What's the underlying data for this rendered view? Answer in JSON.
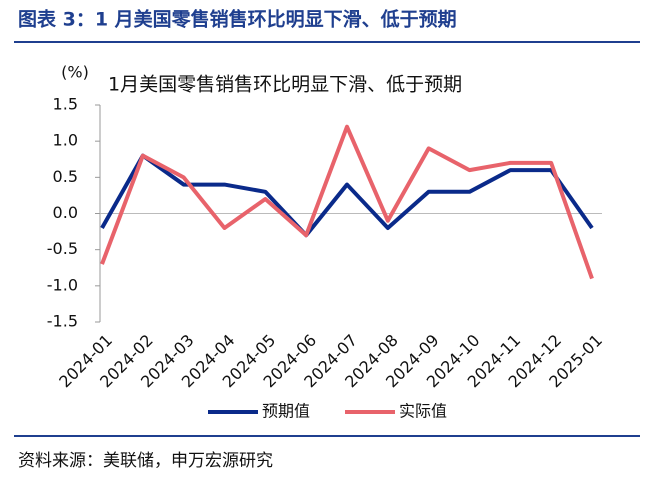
{
  "header": {
    "title": "图表 3：1 月美国零售销售环比明显下滑、低于预期"
  },
  "chart_data": {
    "type": "line",
    "title": "1月美国零售销售环比明显下滑、低于预期",
    "y_label": "(%)",
    "categories": [
      "2024-01",
      "2024-02",
      "2024-03",
      "2024-04",
      "2024-05",
      "2024-06",
      "2024-07",
      "2024-08",
      "2024-09",
      "2024-10",
      "2024-11",
      "2024-12",
      "2025-01"
    ],
    "series": [
      {
        "name": "预期值",
        "color": "#0a2a8a",
        "values": [
          -0.2,
          0.8,
          0.4,
          0.4,
          0.3,
          -0.3,
          0.4,
          -0.2,
          0.3,
          0.3,
          0.6,
          0.6,
          -0.2
        ]
      },
      {
        "name": "实际值",
        "color": "#e8636b",
        "values": [
          -0.7,
          0.8,
          0.5,
          -0.2,
          0.2,
          -0.3,
          1.2,
          -0.1,
          0.9,
          0.6,
          0.7,
          0.7,
          -0.9
        ]
      }
    ],
    "ylim": [
      -1.5,
      1.5
    ],
    "yticks": [
      1.5,
      {
        "value": 1,
        "label": "1.0"
      },
      0.5,
      {
        "value": 0,
        "label": "0.0"
      },
      -0.5,
      {
        "value": -1,
        "label": "-1.0"
      },
      -1.5
    ]
  },
  "footer": {
    "source": "资料来源：美联储，申万宏源研究"
  }
}
